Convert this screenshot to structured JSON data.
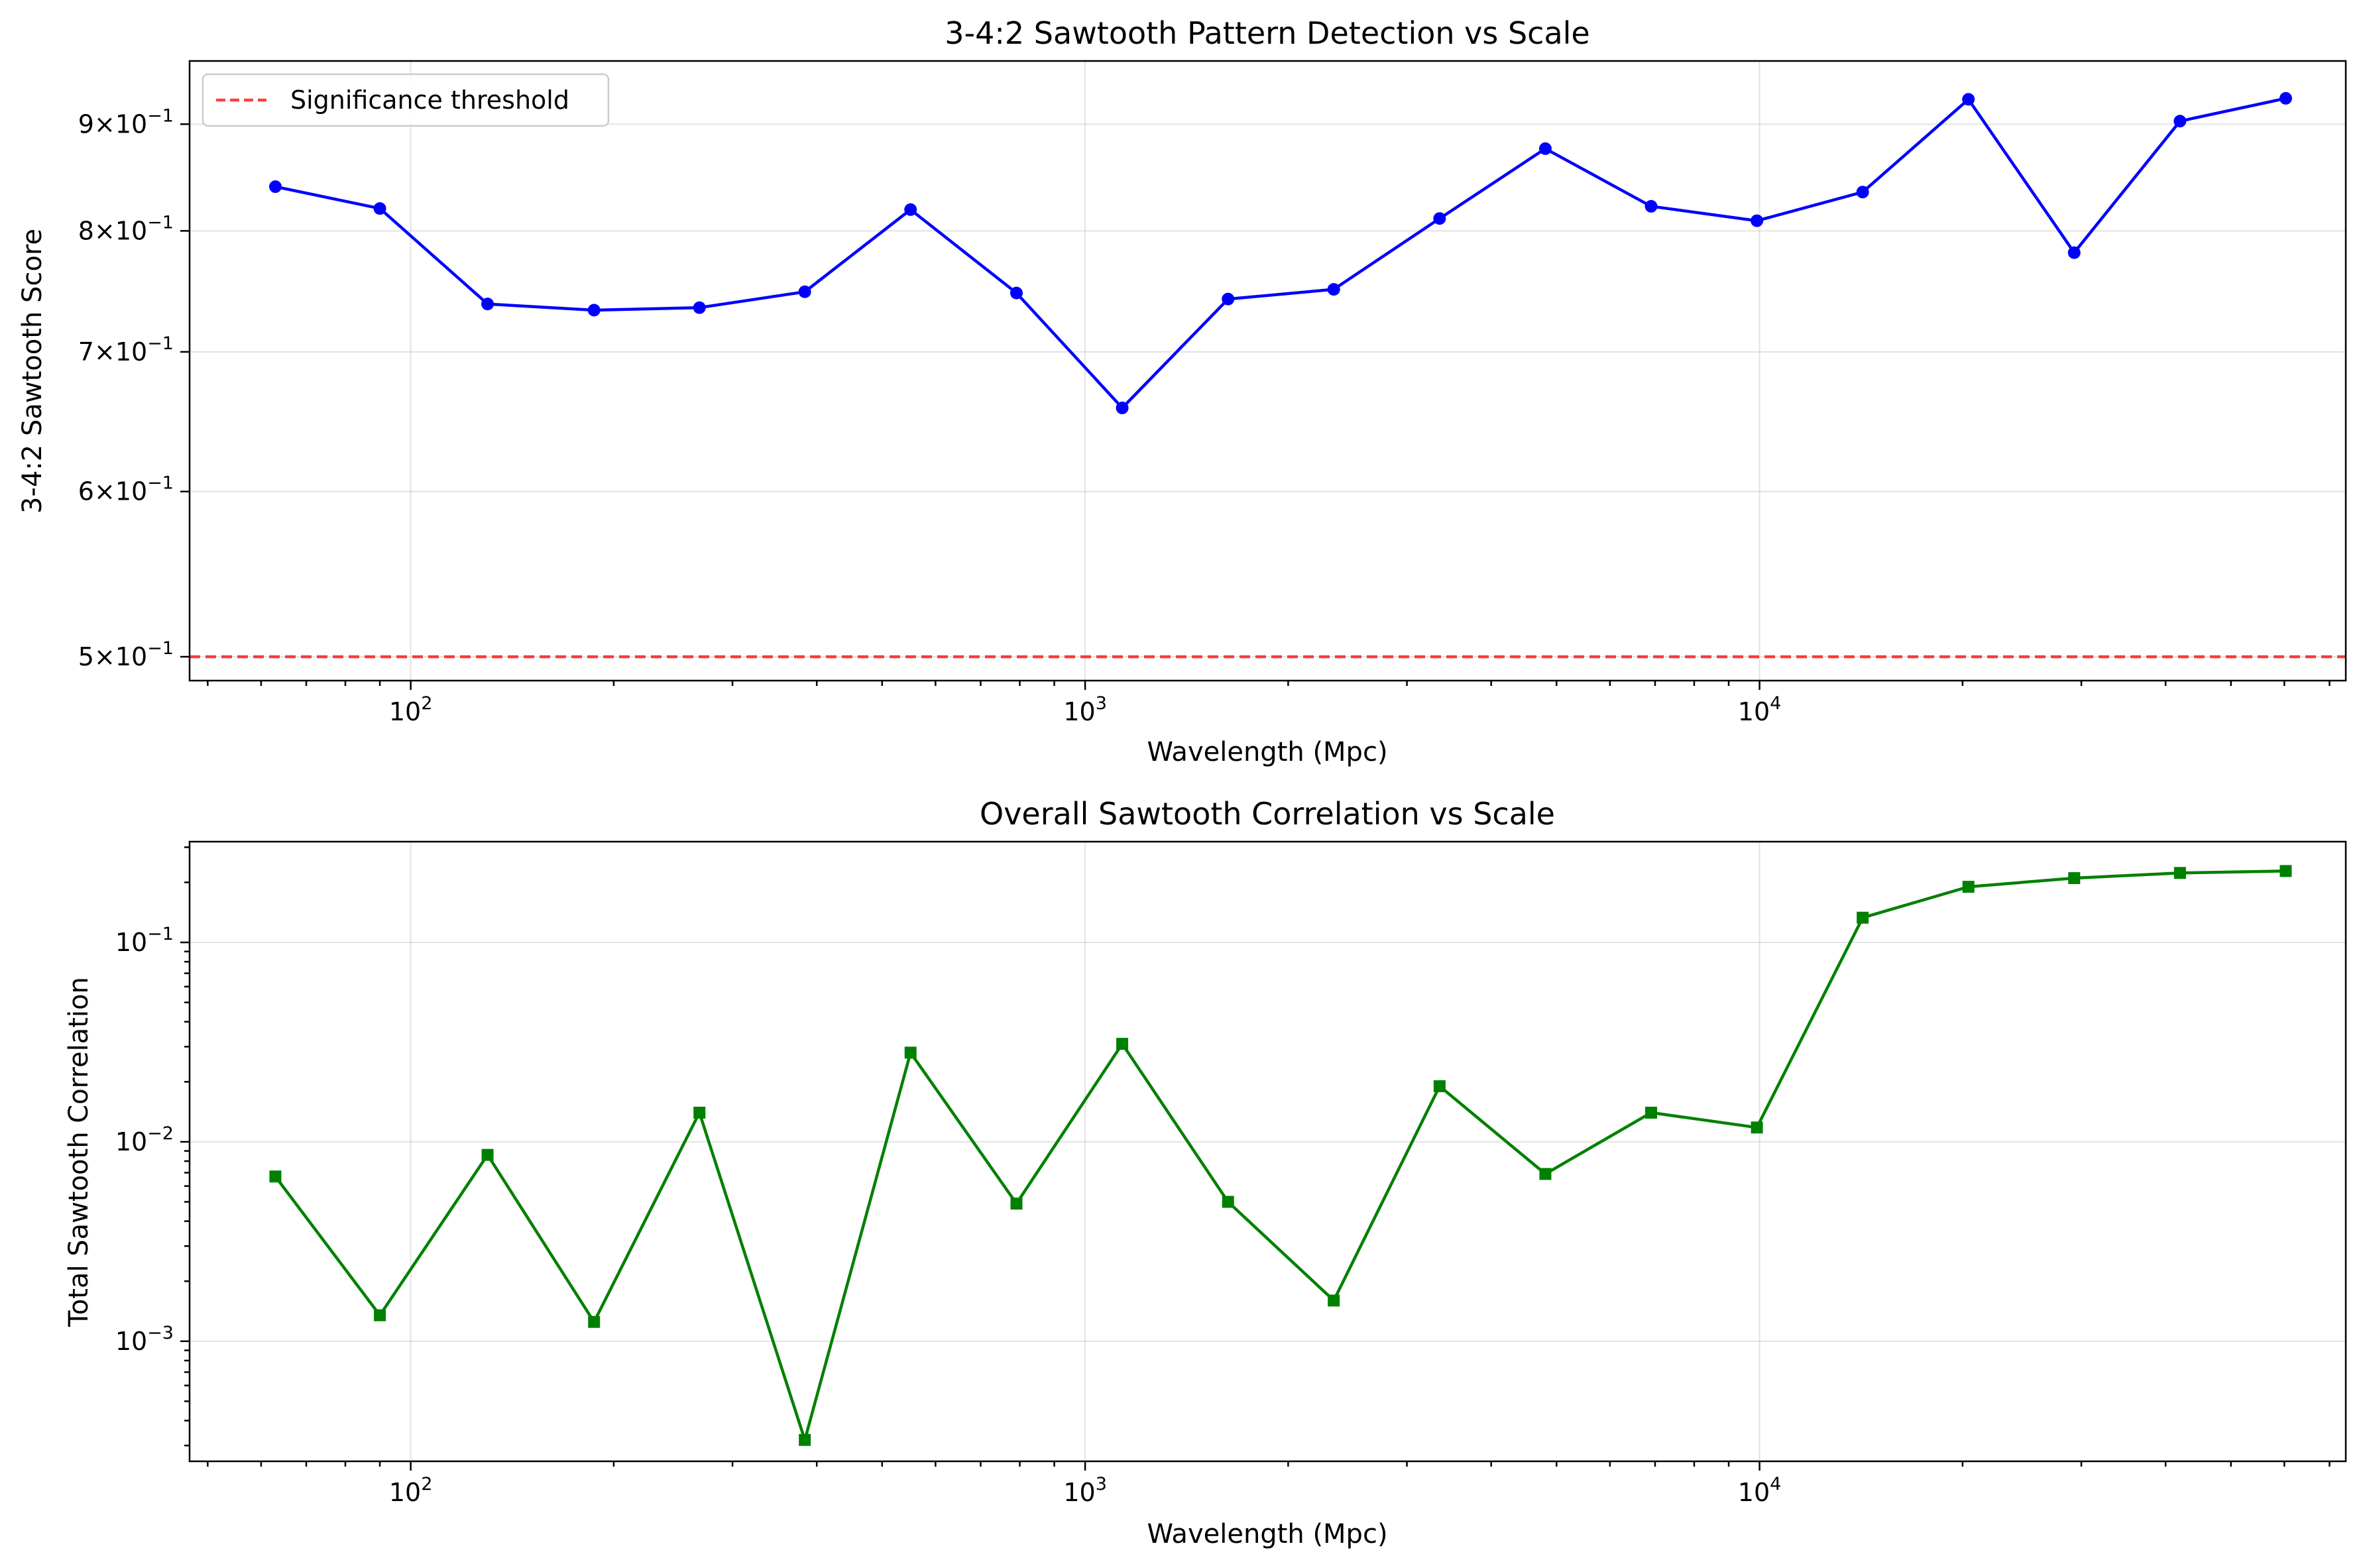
{
  "chart_data": [
    {
      "type": "line",
      "title": "3-4:2 Sawtooth Pattern Detection vs Scale",
      "xlabel": "Wavelength (Mpc)",
      "ylabel": "3-4:2 Sawtooth Score",
      "xscale": "log",
      "yscale": "log",
      "xlim": [
        47,
        74000
      ],
      "ylim": [
        0.487,
        0.965
      ],
      "xticks": [
        {
          "base": "10",
          "exp": "2",
          "value": 100
        },
        {
          "base": "10",
          "exp": "3",
          "value": 1000
        },
        {
          "base": "10",
          "exp": "4",
          "value": 10000
        }
      ],
      "yticks": [
        {
          "mant": "5",
          "base": "10",
          "exp": "−1",
          "value": 0.5
        },
        {
          "mant": "6",
          "base": "10",
          "exp": "−1",
          "value": 0.6
        },
        {
          "mant": "7",
          "base": "10",
          "exp": "−1",
          "value": 0.7
        },
        {
          "mant": "8",
          "base": "10",
          "exp": "−1",
          "value": 0.8
        },
        {
          "mant": "9",
          "base": "10",
          "exp": "−1",
          "value": 0.9
        }
      ],
      "grid": true,
      "legend_position": "top-left",
      "series": [
        {
          "color": "#0000ff",
          "marker": "circle",
          "x": [
            63,
            90,
            130,
            187,
            268,
            384,
            551,
            791,
            1135,
            1629,
            2337,
            3354,
            4813,
            6906,
            9910,
            14220,
            20404,
            29279,
            42014,
            60289
          ],
          "y": [
            0.84,
            0.82,
            0.738,
            0.733,
            0.735,
            0.748,
            0.819,
            0.747,
            0.658,
            0.742,
            0.75,
            0.811,
            0.876,
            0.822,
            0.809,
            0.835,
            0.925,
            0.781,
            0.903,
            0.926
          ]
        }
      ],
      "reference_lines": [
        {
          "name": "Significance threshold",
          "y": 0.5,
          "color": "#ff0000",
          "style": "dashed"
        }
      ]
    },
    {
      "type": "line",
      "title": "Overall Sawtooth Correlation vs Scale",
      "xlabel": "Wavelength (Mpc)",
      "ylabel": "Total Sawtooth Correlation",
      "xscale": "log",
      "yscale": "log",
      "xlim": [
        47,
        74000
      ],
      "ylim": [
        0.00025,
        0.32
      ],
      "xticks": [
        {
          "base": "10",
          "exp": "2",
          "value": 100
        },
        {
          "base": "10",
          "exp": "3",
          "value": 1000
        },
        {
          "base": "10",
          "exp": "4",
          "value": 10000
        }
      ],
      "yticks": [
        {
          "base": "10",
          "exp": "−3",
          "value": 0.001
        },
        {
          "base": "10",
          "exp": "−2",
          "value": 0.01
        },
        {
          "base": "10",
          "exp": "−1",
          "value": 0.1
        }
      ],
      "grid": true,
      "series": [
        {
          "color": "#008000",
          "marker": "square",
          "x": [
            63,
            90,
            130,
            187,
            268,
            384,
            551,
            791,
            1135,
            1629,
            2337,
            3354,
            4813,
            6906,
            9910,
            14220,
            20404,
            29279,
            42014,
            60289
          ],
          "y": [
            0.0067,
            0.00135,
            0.0086,
            0.00125,
            0.014,
            0.00032,
            0.028,
            0.0049,
            0.031,
            0.005,
            0.0016,
            0.019,
            0.0069,
            0.014,
            0.0118,
            0.133,
            0.19,
            0.21,
            0.223,
            0.228
          ]
        }
      ]
    }
  ]
}
